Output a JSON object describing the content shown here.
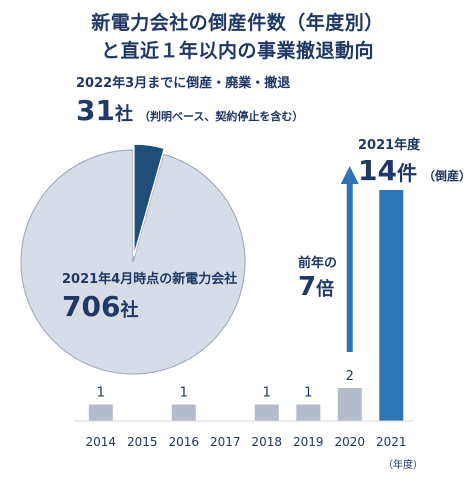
{
  "title_line1": "新電力会社の倒産件数（年度別）",
  "title_line2": "と直近１年以内の事業撤退動向",
  "pie": {
    "small_label": "2022年3月までに倒産・廃業・撤退",
    "small_value": "31",
    "small_unit": "社",
    "small_note": "（判明ベース、契約停止を含む）",
    "main_label": "2021年4月時点の新電力会社",
    "main_value": "706",
    "main_unit": "社"
  },
  "annotation_2021": {
    "label": "2021年度",
    "value": "14",
    "unit": "件",
    "note": "（倒産）"
  },
  "annotation_prev": {
    "label": "前年の",
    "value": "7",
    "unit": "倍"
  },
  "fiscal_unit": "（年度）",
  "colors": {
    "title": "#1f3864",
    "pie_main": "#d6dde8",
    "pie_slice": "#1f4e79",
    "bar_normal": "#b4bccb",
    "bar_highlight": "#2e75b6",
    "arrow": "#2e75b6"
  },
  "chart_data": [
    {
      "type": "pie",
      "slices": [
        {
          "label": "2022年3月までに倒産・廃業・撤退",
          "value": 31
        },
        {
          "label": "2021年4月時点の新電力会社",
          "value": 706
        }
      ]
    },
    {
      "type": "bar",
      "categories": [
        "2014",
        "2015",
        "2016",
        "2017",
        "2018",
        "2019",
        "2020",
        "2021"
      ],
      "values": [
        1,
        0,
        1,
        0,
        1,
        1,
        2,
        14
      ],
      "value_labels": [
        "1",
        "",
        "1",
        "",
        "1",
        "1",
        "2",
        ""
      ],
      "highlight": "2021",
      "xlabel": "（年度）",
      "ylim": [
        0,
        14
      ]
    }
  ]
}
